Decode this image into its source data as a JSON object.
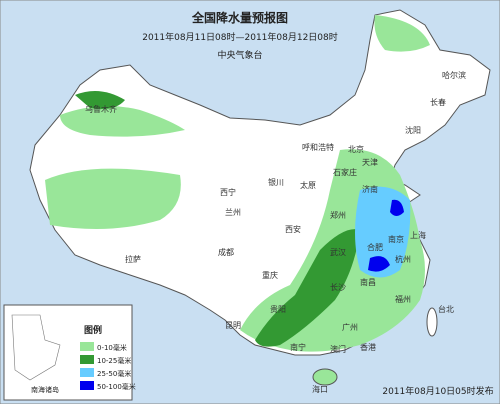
{
  "header": {
    "title": "全国降水量预报图",
    "period": "2011年08月11日08时—2011年08月12日08时",
    "issuer": "中央气象台"
  },
  "legend": {
    "title": "图例",
    "items": [
      {
        "label": "0-10毫米",
        "color": "#99e699"
      },
      {
        "label": "10-25毫米",
        "color": "#339933"
      },
      {
        "label": "25-50毫米",
        "color": "#66ccff"
      },
      {
        "label": "50-100毫米",
        "color": "#0000ee"
      }
    ]
  },
  "cities": [
    "乌鲁木齐",
    "拉萨",
    "西宁",
    "兰州",
    "银川",
    "呼和浩特",
    "北京",
    "天津",
    "石家庄",
    "太原",
    "济南",
    "郑州",
    "西安",
    "成都",
    "重庆",
    "武汉",
    "合肥",
    "南京",
    "上海",
    "杭州",
    "南昌",
    "长沙",
    "贵阳",
    "昆明",
    "南宁",
    "广州",
    "福州",
    "台北",
    "香港",
    "澳门",
    "海口",
    "沈阳",
    "长春",
    "哈尔滨"
  ],
  "inset_label": "南海诸岛",
  "footer": "2011年08月10日05时发布"
}
